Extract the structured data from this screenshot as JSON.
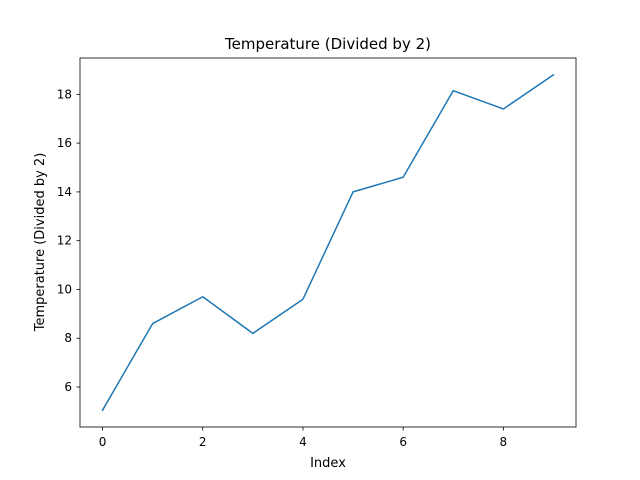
{
  "chart_data": {
    "type": "line",
    "title": "Temperature (Divided by 2)",
    "xlabel": "Index",
    "ylabel": "Temperature (Divided by 2)",
    "x": [
      0,
      1,
      2,
      3,
      4,
      5,
      6,
      7,
      8,
      9
    ],
    "series": [
      {
        "values": [
          5.05,
          8.6,
          9.7,
          8.2,
          9.6,
          14.0,
          14.6,
          18.15,
          17.4,
          18.8
        ],
        "color": "#1f77b4"
      }
    ],
    "xlim": [
      -0.45,
      9.45
    ],
    "ylim": [
      4.36,
      19.49
    ],
    "xticks": [
      0,
      2,
      4,
      6,
      8
    ],
    "yticks": [
      6,
      8,
      10,
      12,
      14,
      16,
      18
    ],
    "xtick_labels": [
      "0",
      "2",
      "4",
      "6",
      "8"
    ],
    "ytick_labels": [
      "6",
      "8",
      "10",
      "12",
      "14",
      "16",
      "18"
    ],
    "grid": false,
    "legend": "none"
  }
}
